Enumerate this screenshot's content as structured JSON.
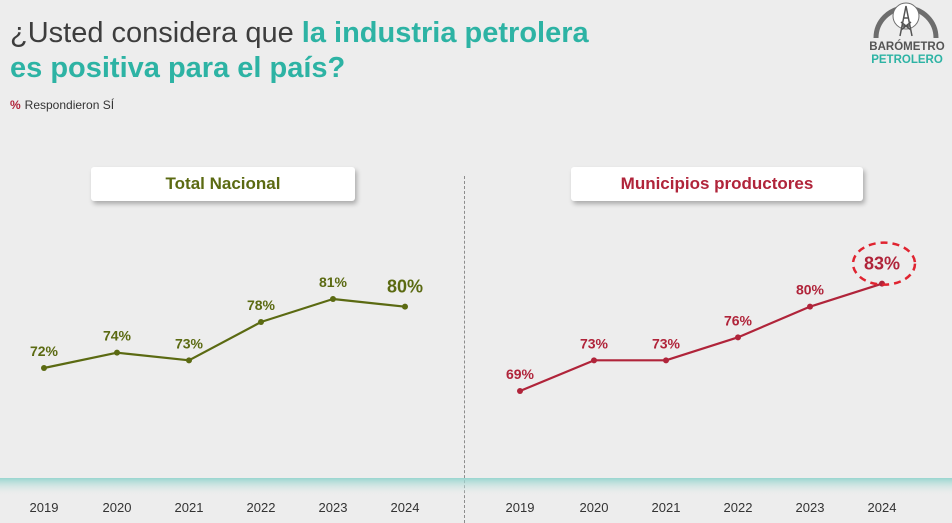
{
  "header": {
    "title_prefix": "¿Usted considera que ",
    "title_highlight": "la industria petrolera",
    "title_line2": "es positiva para el país?",
    "note_pct": "%",
    "note_text": "Respondieron SÍ"
  },
  "logo": {
    "line1": "BARÓMETRO",
    "line2": "PETROLERO",
    "icon": "oil-derrick-icon"
  },
  "colors": {
    "teal": "#2db3a4",
    "olive": "#5b6a12",
    "crimson": "#b0243a",
    "band": "#8fd3cc"
  },
  "chart_data": [
    {
      "type": "line",
      "title": "Total Nacional",
      "categories": [
        "2019",
        "2020",
        "2021",
        "2022",
        "2023",
        "2024"
      ],
      "series": [
        {
          "values": [
            72,
            74,
            73,
            78,
            81,
            80
          ],
          "labels": [
            "72%",
            "74%",
            "73%",
            "78%",
            "81%",
            "80%"
          ]
        }
      ],
      "emphasized_index": 5,
      "color": "#5b6a12",
      "xlabel": "",
      "ylabel": "",
      "ylim": [
        60,
        90
      ],
      "grid": false
    },
    {
      "type": "line",
      "title": "Municipios productores",
      "categories": [
        "2019",
        "2020",
        "2021",
        "2022",
        "2023",
        "2024"
      ],
      "series": [
        {
          "values": [
            69,
            73,
            73,
            76,
            80,
            83
          ],
          "labels": [
            "69%",
            "73%",
            "73%",
            "76%",
            "80%",
            "83%"
          ]
        }
      ],
      "emphasized_index": 5,
      "color": "#b0243a",
      "xlabel": "",
      "ylabel": "",
      "ylim": [
        60,
        90
      ],
      "grid": false
    }
  ]
}
